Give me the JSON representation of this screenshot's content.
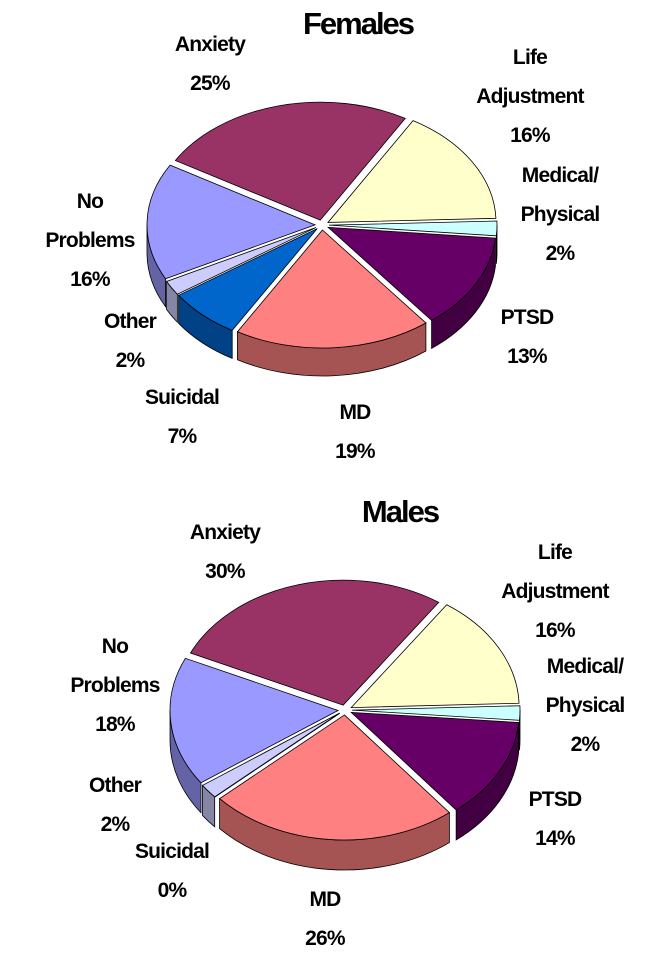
{
  "chart_data": [
    {
      "type": "pie",
      "title": "Females",
      "categories": [
        "Anxiety",
        "Life Adjustment",
        "Medical/ Physical",
        "PTSD",
        "MD",
        "Suicidal",
        "Other",
        "No Problems"
      ],
      "values": [
        25,
        16,
        2,
        13,
        19,
        7,
        2,
        16
      ],
      "value_labels": [
        "25%",
        "16%",
        "2%",
        "13%",
        "19%",
        "7%",
        "2%",
        "16%"
      ],
      "colors": [
        "#993366",
        "#ffffcc",
        "#ccffff",
        "#660066",
        "#ff8080",
        "#0066cc",
        "#ccccff",
        "#9999ff"
      ]
    },
    {
      "type": "pie",
      "title": "Males",
      "categories": [
        "Anxiety",
        "Life Adjustment",
        "Medical/ Physical",
        "PTSD",
        "MD",
        "Suicidal",
        "Other",
        "No Problems"
      ],
      "values": [
        30,
        16,
        2,
        14,
        26,
        0,
        2,
        18
      ],
      "value_labels": [
        "30%",
        "16%",
        "2%",
        "14%",
        "26%",
        "0%",
        "2%",
        "18%"
      ],
      "colors": [
        "#993366",
        "#ffffcc",
        "#ccffff",
        "#660066",
        "#ff8080",
        "#0066cc",
        "#ccccff",
        "#9999ff"
      ]
    }
  ]
}
